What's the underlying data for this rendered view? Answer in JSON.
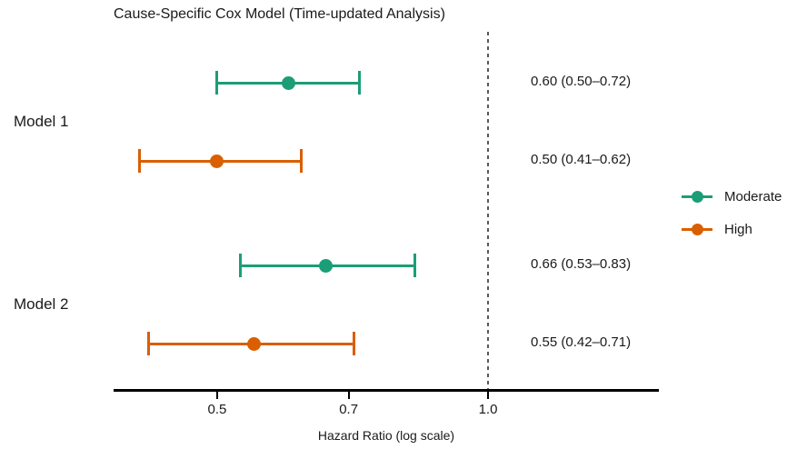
{
  "chart_data": {
    "type": "scatter",
    "subtype": "forest-plot",
    "title": "Cause-Specific Cox Model (Time-updated Analysis)",
    "xlabel": "Hazard Ratio (log scale)",
    "x_scale": "log",
    "x_ticks": [
      {
        "value": 0.5,
        "label": "0.5"
      },
      {
        "value": 0.7,
        "label": "0.7"
      },
      {
        "value": 1.0,
        "label": "1.0"
      }
    ],
    "reference_line_value": 1.0,
    "groups": [
      {
        "label": "Model 1",
        "rows": [
          {
            "series": "Moderate",
            "hr": 0.6,
            "ci_low": 0.5,
            "ci_high": 0.72,
            "annotation": "0.60 (0.50–0.72)"
          },
          {
            "series": "High",
            "hr": 0.5,
            "ci_low": 0.41,
            "ci_high": 0.62,
            "annotation": "0.50 (0.41–0.62)"
          }
        ]
      },
      {
        "label": "Model 2",
        "rows": [
          {
            "series": "Moderate",
            "hr": 0.66,
            "ci_low": 0.53,
            "ci_high": 0.83,
            "annotation": "0.66 (0.53–0.83)"
          },
          {
            "series": "High",
            "hr": 0.55,
            "ci_low": 0.42,
            "ci_high": 0.71,
            "annotation": "0.55 (0.42–0.71)"
          }
        ]
      }
    ],
    "legend": [
      {
        "label": "Moderate",
        "color": "#1b9e77"
      },
      {
        "label": "High",
        "color": "#d95f02"
      }
    ],
    "series_colors": {
      "Moderate": "#1b9e77",
      "High": "#d95f02"
    },
    "colors": {
      "reference_line": "#595959",
      "axis": "#000000",
      "text": "#1a1a1a"
    },
    "legend_position": "right"
  }
}
